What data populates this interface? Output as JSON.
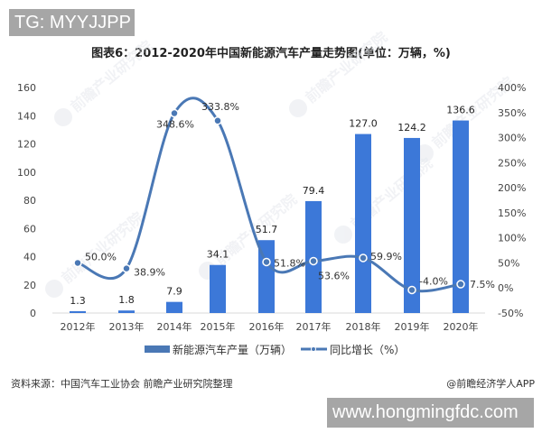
{
  "overlay": {
    "tag_label": "TG: MYYJJPP",
    "url_label": "www.hongmingfdc.com"
  },
  "header": {
    "title": "图表6：2012-2020年中国新能源汽车产量走势图(单位：万辆，%)"
  },
  "footer": {
    "source": "资料来源：中国汽车工业协会 前瞻产业研究院整理",
    "brand": "@前瞻经济学人APP"
  },
  "colors": {
    "bar": "#3c78d8",
    "line": "#4a78b5",
    "axis_text": "#444444",
    "watermark": "#e6e9ee"
  },
  "legend": {
    "bar_label": "新能源汽车产量（万辆）",
    "line_label": "同比增长（%）"
  },
  "chart_data": {
    "type": "bar",
    "title": "图表6：2012-2020年中国新能源汽车产量走势图(单位：万辆，%)",
    "categories": [
      "2012年",
      "2013年",
      "2014年",
      "2015年",
      "2016年",
      "2017年",
      "2018年",
      "2019年",
      "2020年"
    ],
    "series": [
      {
        "name": "新能源汽车产量（万辆）",
        "type": "bar",
        "axis": "left",
        "values": [
          1.3,
          1.8,
          7.9,
          34.1,
          51.7,
          79.4,
          127.0,
          124.2,
          136.6
        ],
        "labels": [
          "1.3",
          "1.8",
          "7.9",
          "34.1",
          "51.7",
          "79.4",
          "127.0",
          "124.2",
          "136.6"
        ]
      },
      {
        "name": "同比增长（%）",
        "type": "line",
        "axis": "right",
        "values": [
          50.0,
          38.9,
          348.6,
          333.8,
          51.8,
          53.6,
          59.9,
          -4.0,
          7.5
        ],
        "labels": [
          "50.0%",
          "38.9%",
          "348.6%",
          "333.8%",
          "51.8%",
          "53.6%",
          "59.9%",
          "-4.0%",
          "7.5%"
        ]
      }
    ],
    "y_left": {
      "ylim": [
        0,
        160
      ],
      "ticks": [
        "0",
        "20",
        "40",
        "60",
        "80",
        "100",
        "120",
        "140",
        "160"
      ]
    },
    "y_right": {
      "ylim": [
        -50,
        400
      ],
      "ticks": [
        "-50%",
        "0%",
        "50%",
        "100%",
        "150%",
        "200%",
        "250%",
        "300%",
        "350%",
        "400%"
      ]
    },
    "xlabel": "",
    "ylabel": "",
    "grid": false,
    "legend_position": "bottom"
  }
}
